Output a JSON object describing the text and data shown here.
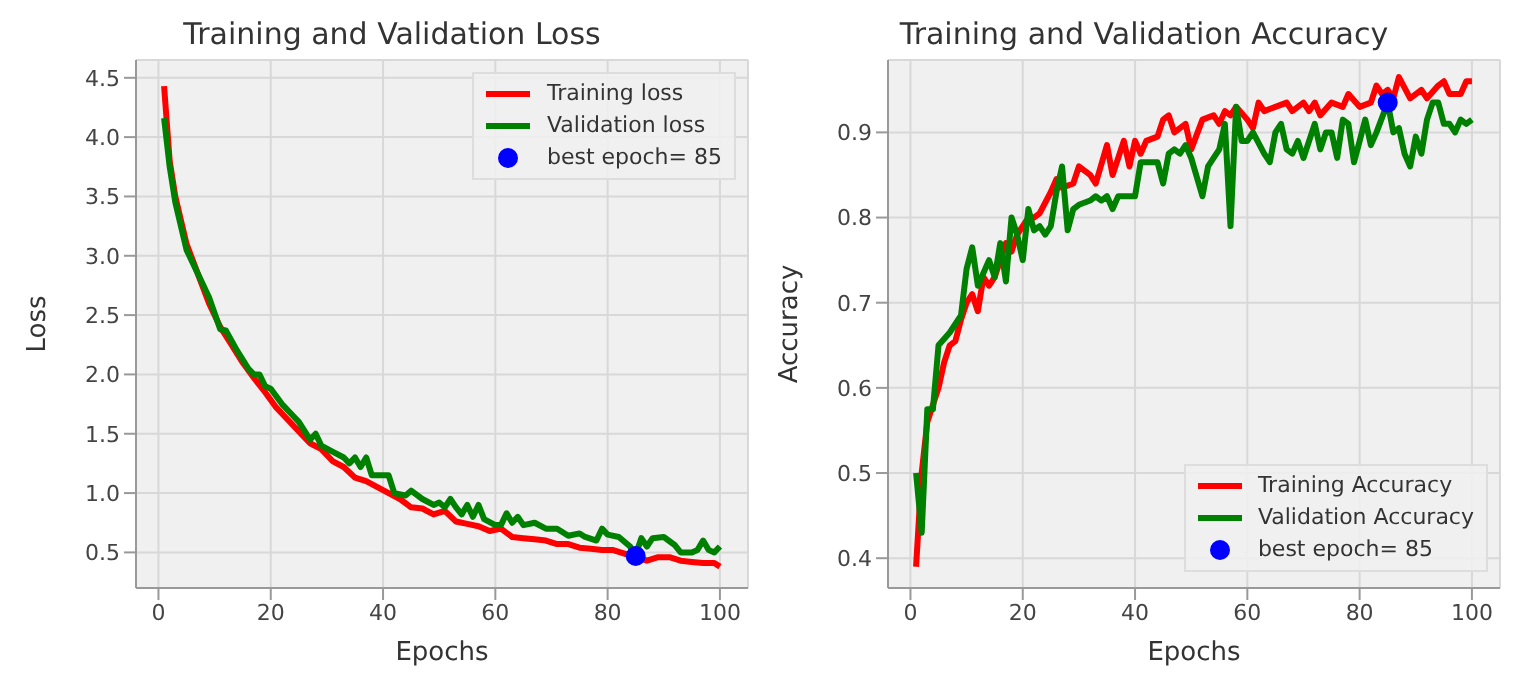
{
  "chart_data": [
    {
      "type": "line",
      "title": "Training and Validation Loss",
      "xlabel": "Epochs",
      "ylabel": "Loss",
      "xlim": [
        -4,
        105
      ],
      "xticks": [
        0,
        20,
        40,
        60,
        80,
        100
      ],
      "ylim": [
        0.2,
        4.65
      ],
      "yticks": [
        0.5,
        {
          "value": 1,
          "label": "1.0"
        },
        1.5,
        {
          "value": 2,
          "label": "2.0"
        },
        2.5,
        {
          "value": 3,
          "label": "3.0"
        },
        3.5,
        {
          "value": 4,
          "label": "4.0"
        },
        4.5
      ],
      "grid": true,
      "legend": "top right",
      "line_style": "solid",
      "series": [
        {
          "name": "Training loss",
          "color": "#ff0000",
          "type": "line",
          "x": [
            1,
            2,
            3,
            5,
            7,
            9,
            11,
            13,
            15,
            17,
            19,
            21,
            23,
            25,
            27,
            29,
            31,
            33,
            35,
            37,
            39,
            41,
            43,
            45,
            47,
            49,
            51,
            53,
            55,
            57,
            59,
            61,
            63,
            65,
            67,
            69,
            71,
            73,
            75,
            77,
            79,
            81,
            83,
            85,
            87,
            89,
            91,
            93,
            95,
            97,
            99,
            100
          ],
          "values": [
            4.43,
            3.8,
            3.5,
            3.1,
            2.85,
            2.6,
            2.4,
            2.25,
            2.1,
            1.97,
            1.85,
            1.72,
            1.62,
            1.52,
            1.42,
            1.37,
            1.27,
            1.22,
            1.13,
            1.1,
            1.05,
            1.0,
            0.95,
            0.88,
            0.87,
            0.82,
            0.85,
            0.76,
            0.74,
            0.72,
            0.68,
            0.7,
            0.63,
            0.62,
            0.61,
            0.6,
            0.57,
            0.57,
            0.54,
            0.53,
            0.52,
            0.52,
            0.49,
            0.46,
            0.43,
            0.46,
            0.46,
            0.43,
            0.42,
            0.41,
            0.41,
            0.38
          ]
        },
        {
          "name": "Validation loss",
          "color": "#008000",
          "type": "line",
          "x": [
            1,
            2,
            3,
            5,
            7,
            9,
            11,
            12,
            14,
            16,
            17,
            18,
            19,
            20,
            22,
            24,
            25,
            27,
            28,
            29,
            31,
            33,
            34,
            35,
            36,
            37,
            38,
            41,
            42,
            44,
            45,
            47,
            49,
            50,
            51,
            52,
            53,
            54,
            55,
            56,
            57,
            58,
            60,
            61,
            62,
            63,
            64,
            65,
            67,
            69,
            71,
            73,
            75,
            76,
            78,
            79,
            80,
            82,
            84,
            85,
            86,
            87,
            88,
            90,
            92,
            93,
            95,
            96,
            97,
            98,
            99,
            100
          ],
          "values": [
            4.16,
            3.75,
            3.45,
            3.05,
            2.85,
            2.65,
            2.38,
            2.37,
            2.2,
            2.05,
            2.0,
            2.0,
            1.9,
            1.88,
            1.75,
            1.65,
            1.6,
            1.45,
            1.5,
            1.4,
            1.35,
            1.3,
            1.25,
            1.3,
            1.22,
            1.3,
            1.15,
            1.15,
            1.0,
            0.98,
            1.02,
            0.95,
            0.9,
            0.92,
            0.88,
            0.95,
            0.88,
            0.82,
            0.9,
            0.8,
            0.9,
            0.78,
            0.73,
            0.73,
            0.83,
            0.75,
            0.8,
            0.73,
            0.75,
            0.7,
            0.7,
            0.64,
            0.66,
            0.63,
            0.6,
            0.7,
            0.65,
            0.63,
            0.55,
            0.48,
            0.62,
            0.55,
            0.62,
            0.63,
            0.56,
            0.5,
            0.5,
            0.52,
            0.6,
            0.52,
            0.5,
            0.55
          ]
        },
        {
          "name": "best epoch= 85",
          "color": "#0000ff",
          "type": "scatter",
          "marker": "circle",
          "x": [
            85
          ],
          "values": [
            0.47
          ]
        }
      ]
    },
    {
      "type": "line",
      "title": "Training and Validation Accuracy",
      "xlabel": "Epochs",
      "ylabel": "Accuracy",
      "xlim": [
        -4,
        105
      ],
      "xticks": [
        0,
        20,
        40,
        60,
        80,
        100
      ],
      "ylim": [
        0.365,
        0.985
      ],
      "yticks": [
        0.4,
        0.5,
        0.6,
        0.7,
        0.8,
        0.9
      ],
      "grid": true,
      "legend": "bottom right",
      "line_style": "solid",
      "series": [
        {
          "name": "Training Accuracy",
          "color": "#ff0000",
          "type": "line",
          "x": [
            1,
            2,
            3,
            4,
            5,
            6,
            7,
            8,
            9,
            10,
            11,
            12,
            13,
            14,
            15,
            16,
            17,
            18,
            19,
            20,
            21,
            22,
            23,
            25,
            26,
            27,
            29,
            30,
            32,
            33,
            35,
            36,
            38,
            39,
            40,
            41,
            42,
            44,
            45,
            46,
            47,
            49,
            50,
            52,
            54,
            55,
            56,
            57,
            58,
            60,
            61,
            62,
            63,
            65,
            67,
            68,
            70,
            71,
            72,
            73,
            75,
            77,
            78,
            80,
            82,
            83,
            84,
            85,
            86,
            87,
            89,
            91,
            92,
            94,
            95,
            96,
            98,
            99,
            100
          ],
          "values": [
            0.39,
            0.5,
            0.56,
            0.58,
            0.6,
            0.63,
            0.65,
            0.655,
            0.68,
            0.7,
            0.71,
            0.69,
            0.73,
            0.72,
            0.73,
            0.75,
            0.77,
            0.76,
            0.78,
            0.79,
            0.8,
            0.8,
            0.805,
            0.83,
            0.845,
            0.835,
            0.84,
            0.86,
            0.85,
            0.84,
            0.885,
            0.85,
            0.89,
            0.86,
            0.89,
            0.875,
            0.89,
            0.895,
            0.915,
            0.92,
            0.9,
            0.91,
            0.88,
            0.915,
            0.92,
            0.91,
            0.925,
            0.92,
            0.93,
            0.915,
            0.905,
            0.935,
            0.925,
            0.93,
            0.935,
            0.925,
            0.935,
            0.925,
            0.935,
            0.92,
            0.935,
            0.93,
            0.945,
            0.93,
            0.935,
            0.955,
            0.945,
            0.95,
            0.94,
            0.965,
            0.94,
            0.95,
            0.94,
            0.955,
            0.96,
            0.945,
            0.945,
            0.96,
            0.96
          ]
        },
        {
          "name": "Validation Accuracy",
          "color": "#008000",
          "type": "line",
          "x": [
            1,
            2,
            3,
            4,
            5,
            7,
            9,
            10,
            11,
            12,
            14,
            15,
            16,
            17,
            18,
            19,
            20,
            21,
            22,
            23,
            24,
            25,
            26,
            27,
            28,
            29,
            30,
            32,
            33,
            34,
            35,
            36,
            37,
            40,
            41,
            44,
            45,
            46,
            47,
            48,
            49,
            50,
            52,
            53,
            55,
            56,
            57,
            58,
            59,
            60,
            61,
            63,
            64,
            65,
            66,
            67,
            68,
            69,
            70,
            72,
            73,
            74,
            75,
            76,
            77,
            78,
            79,
            80,
            81,
            82,
            83,
            85,
            86,
            87,
            88,
            89,
            90,
            91,
            92,
            93,
            94,
            95,
            96,
            97,
            98,
            99,
            100
          ],
          "values": [
            0.5,
            0.43,
            0.575,
            0.575,
            0.65,
            0.665,
            0.685,
            0.74,
            0.765,
            0.72,
            0.75,
            0.73,
            0.77,
            0.725,
            0.8,
            0.78,
            0.75,
            0.81,
            0.785,
            0.79,
            0.78,
            0.79,
            0.83,
            0.86,
            0.785,
            0.81,
            0.815,
            0.82,
            0.825,
            0.82,
            0.825,
            0.81,
            0.825,
            0.825,
            0.865,
            0.865,
            0.84,
            0.875,
            0.88,
            0.875,
            0.885,
            0.87,
            0.825,
            0.86,
            0.88,
            0.91,
            0.79,
            0.93,
            0.89,
            0.89,
            0.9,
            0.875,
            0.865,
            0.9,
            0.91,
            0.88,
            0.875,
            0.89,
            0.87,
            0.91,
            0.88,
            0.9,
            0.9,
            0.87,
            0.915,
            0.91,
            0.865,
            0.89,
            0.915,
            0.885,
            0.9,
            0.935,
            0.9,
            0.905,
            0.875,
            0.86,
            0.895,
            0.875,
            0.915,
            0.935,
            0.935,
            0.91,
            0.91,
            0.9,
            0.915,
            0.91,
            0.915
          ]
        },
        {
          "name": "best epoch= 85",
          "color": "#0000ff",
          "type": "scatter",
          "marker": "circle",
          "x": [
            85
          ],
          "values": [
            0.935
          ]
        }
      ]
    }
  ]
}
